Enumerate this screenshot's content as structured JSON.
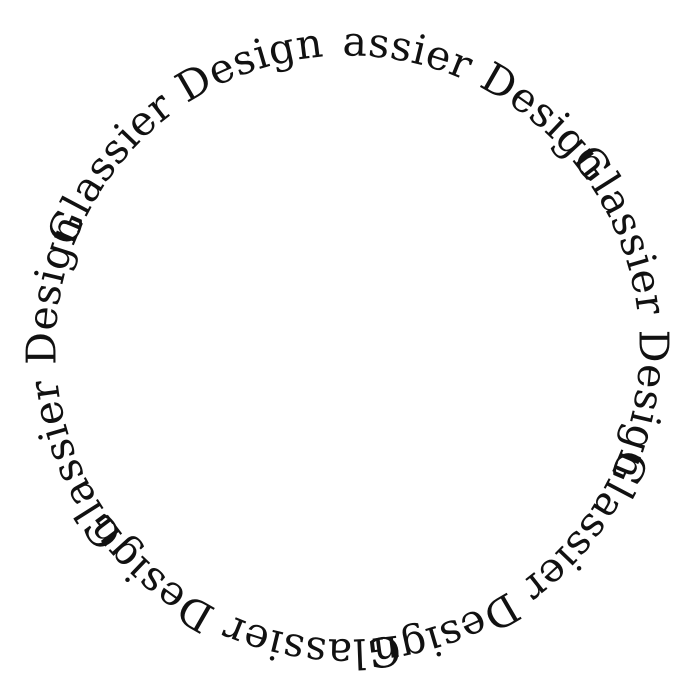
{
  "logo": {
    "phrase": "Glassier Design",
    "repeat_count": 6,
    "text_color": "#111111",
    "background_color": "#ffffff"
  }
}
